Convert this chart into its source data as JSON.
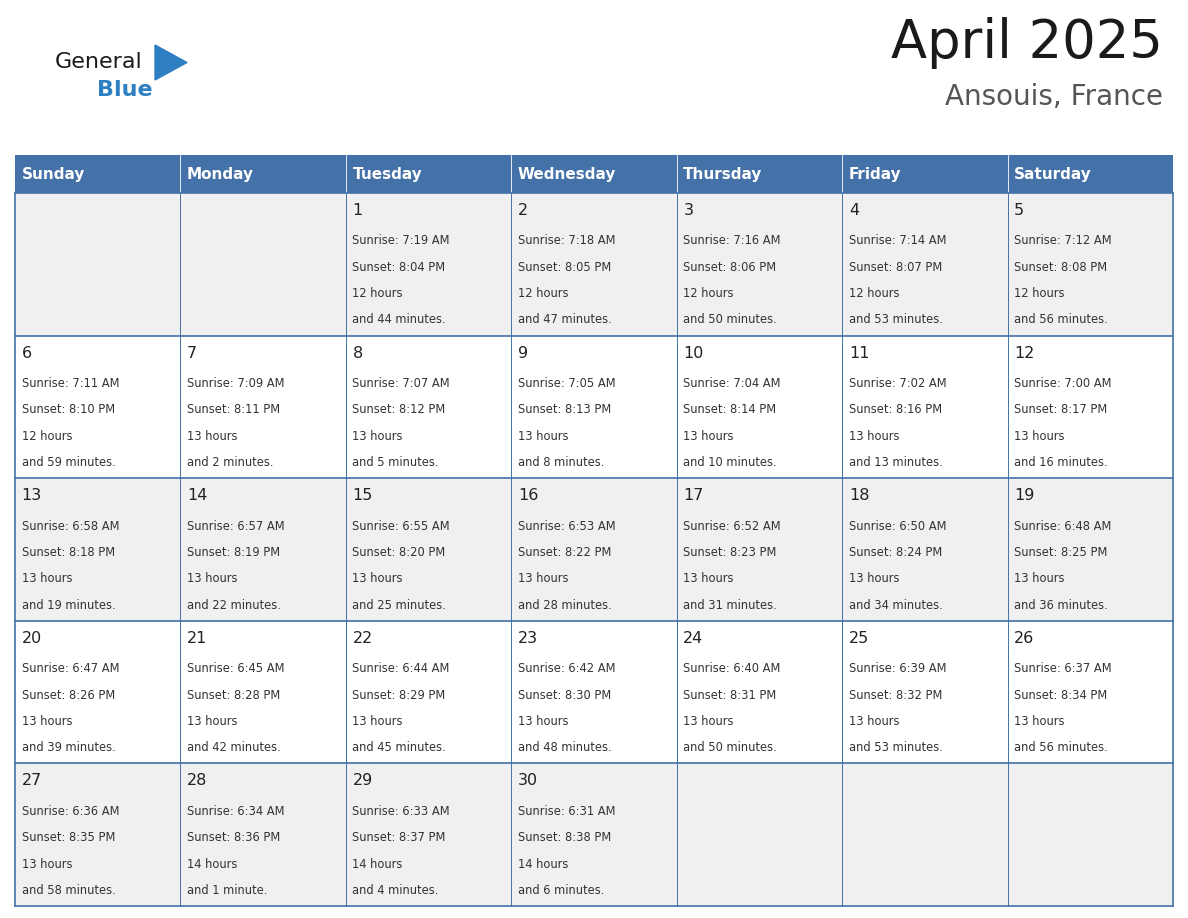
{
  "title": "April 2025",
  "subtitle": "Ansouis, France",
  "days_of_week": [
    "Sunday",
    "Monday",
    "Tuesday",
    "Wednesday",
    "Thursday",
    "Friday",
    "Saturday"
  ],
  "header_bg": "#4472a8",
  "header_text": "#ffffff",
  "cell_bg_odd": "#f0f0f0",
  "cell_bg_even": "#ffffff",
  "line_color": "#4472a8",
  "text_color": "#333333",
  "calendar_data": [
    [
      {
        "day": null,
        "sunrise": null,
        "sunset": null,
        "daylight": null
      },
      {
        "day": null,
        "sunrise": null,
        "sunset": null,
        "daylight": null
      },
      {
        "day": 1,
        "sunrise": "7:19 AM",
        "sunset": "8:04 PM",
        "daylight": "12 hours\nand 44 minutes."
      },
      {
        "day": 2,
        "sunrise": "7:18 AM",
        "sunset": "8:05 PM",
        "daylight": "12 hours\nand 47 minutes."
      },
      {
        "day": 3,
        "sunrise": "7:16 AM",
        "sunset": "8:06 PM",
        "daylight": "12 hours\nand 50 minutes."
      },
      {
        "day": 4,
        "sunrise": "7:14 AM",
        "sunset": "8:07 PM",
        "daylight": "12 hours\nand 53 minutes."
      },
      {
        "day": 5,
        "sunrise": "7:12 AM",
        "sunset": "8:08 PM",
        "daylight": "12 hours\nand 56 minutes."
      }
    ],
    [
      {
        "day": 6,
        "sunrise": "7:11 AM",
        "sunset": "8:10 PM",
        "daylight": "12 hours\nand 59 minutes."
      },
      {
        "day": 7,
        "sunrise": "7:09 AM",
        "sunset": "8:11 PM",
        "daylight": "13 hours\nand 2 minutes."
      },
      {
        "day": 8,
        "sunrise": "7:07 AM",
        "sunset": "8:12 PM",
        "daylight": "13 hours\nand 5 minutes."
      },
      {
        "day": 9,
        "sunrise": "7:05 AM",
        "sunset": "8:13 PM",
        "daylight": "13 hours\nand 8 minutes."
      },
      {
        "day": 10,
        "sunrise": "7:04 AM",
        "sunset": "8:14 PM",
        "daylight": "13 hours\nand 10 minutes."
      },
      {
        "day": 11,
        "sunrise": "7:02 AM",
        "sunset": "8:16 PM",
        "daylight": "13 hours\nand 13 minutes."
      },
      {
        "day": 12,
        "sunrise": "7:00 AM",
        "sunset": "8:17 PM",
        "daylight": "13 hours\nand 16 minutes."
      }
    ],
    [
      {
        "day": 13,
        "sunrise": "6:58 AM",
        "sunset": "8:18 PM",
        "daylight": "13 hours\nand 19 minutes."
      },
      {
        "day": 14,
        "sunrise": "6:57 AM",
        "sunset": "8:19 PM",
        "daylight": "13 hours\nand 22 minutes."
      },
      {
        "day": 15,
        "sunrise": "6:55 AM",
        "sunset": "8:20 PM",
        "daylight": "13 hours\nand 25 minutes."
      },
      {
        "day": 16,
        "sunrise": "6:53 AM",
        "sunset": "8:22 PM",
        "daylight": "13 hours\nand 28 minutes."
      },
      {
        "day": 17,
        "sunrise": "6:52 AM",
        "sunset": "8:23 PM",
        "daylight": "13 hours\nand 31 minutes."
      },
      {
        "day": 18,
        "sunrise": "6:50 AM",
        "sunset": "8:24 PM",
        "daylight": "13 hours\nand 34 minutes."
      },
      {
        "day": 19,
        "sunrise": "6:48 AM",
        "sunset": "8:25 PM",
        "daylight": "13 hours\nand 36 minutes."
      }
    ],
    [
      {
        "day": 20,
        "sunrise": "6:47 AM",
        "sunset": "8:26 PM",
        "daylight": "13 hours\nand 39 minutes."
      },
      {
        "day": 21,
        "sunrise": "6:45 AM",
        "sunset": "8:28 PM",
        "daylight": "13 hours\nand 42 minutes."
      },
      {
        "day": 22,
        "sunrise": "6:44 AM",
        "sunset": "8:29 PM",
        "daylight": "13 hours\nand 45 minutes."
      },
      {
        "day": 23,
        "sunrise": "6:42 AM",
        "sunset": "8:30 PM",
        "daylight": "13 hours\nand 48 minutes."
      },
      {
        "day": 24,
        "sunrise": "6:40 AM",
        "sunset": "8:31 PM",
        "daylight": "13 hours\nand 50 minutes."
      },
      {
        "day": 25,
        "sunrise": "6:39 AM",
        "sunset": "8:32 PM",
        "daylight": "13 hours\nand 53 minutes."
      },
      {
        "day": 26,
        "sunrise": "6:37 AM",
        "sunset": "8:34 PM",
        "daylight": "13 hours\nand 56 minutes."
      }
    ],
    [
      {
        "day": 27,
        "sunrise": "6:36 AM",
        "sunset": "8:35 PM",
        "daylight": "13 hours\nand 58 minutes."
      },
      {
        "day": 28,
        "sunrise": "6:34 AM",
        "sunset": "8:36 PM",
        "daylight": "14 hours\nand 1 minute."
      },
      {
        "day": 29,
        "sunrise": "6:33 AM",
        "sunset": "8:37 PM",
        "daylight": "14 hours\nand 4 minutes."
      },
      {
        "day": 30,
        "sunrise": "6:31 AM",
        "sunset": "8:38 PM",
        "daylight": "14 hours\nand 6 minutes."
      },
      {
        "day": null,
        "sunrise": null,
        "sunset": null,
        "daylight": null
      },
      {
        "day": null,
        "sunrise": null,
        "sunset": null,
        "daylight": null
      },
      {
        "day": null,
        "sunrise": null,
        "sunset": null,
        "daylight": null
      }
    ]
  ],
  "logo_color_general": "#1a1a1a",
  "logo_color_blue": "#2e7ec2",
  "logo_triangle_color": "#2e7ec2",
  "title_color": "#1a1a1a",
  "subtitle_color": "#555555"
}
